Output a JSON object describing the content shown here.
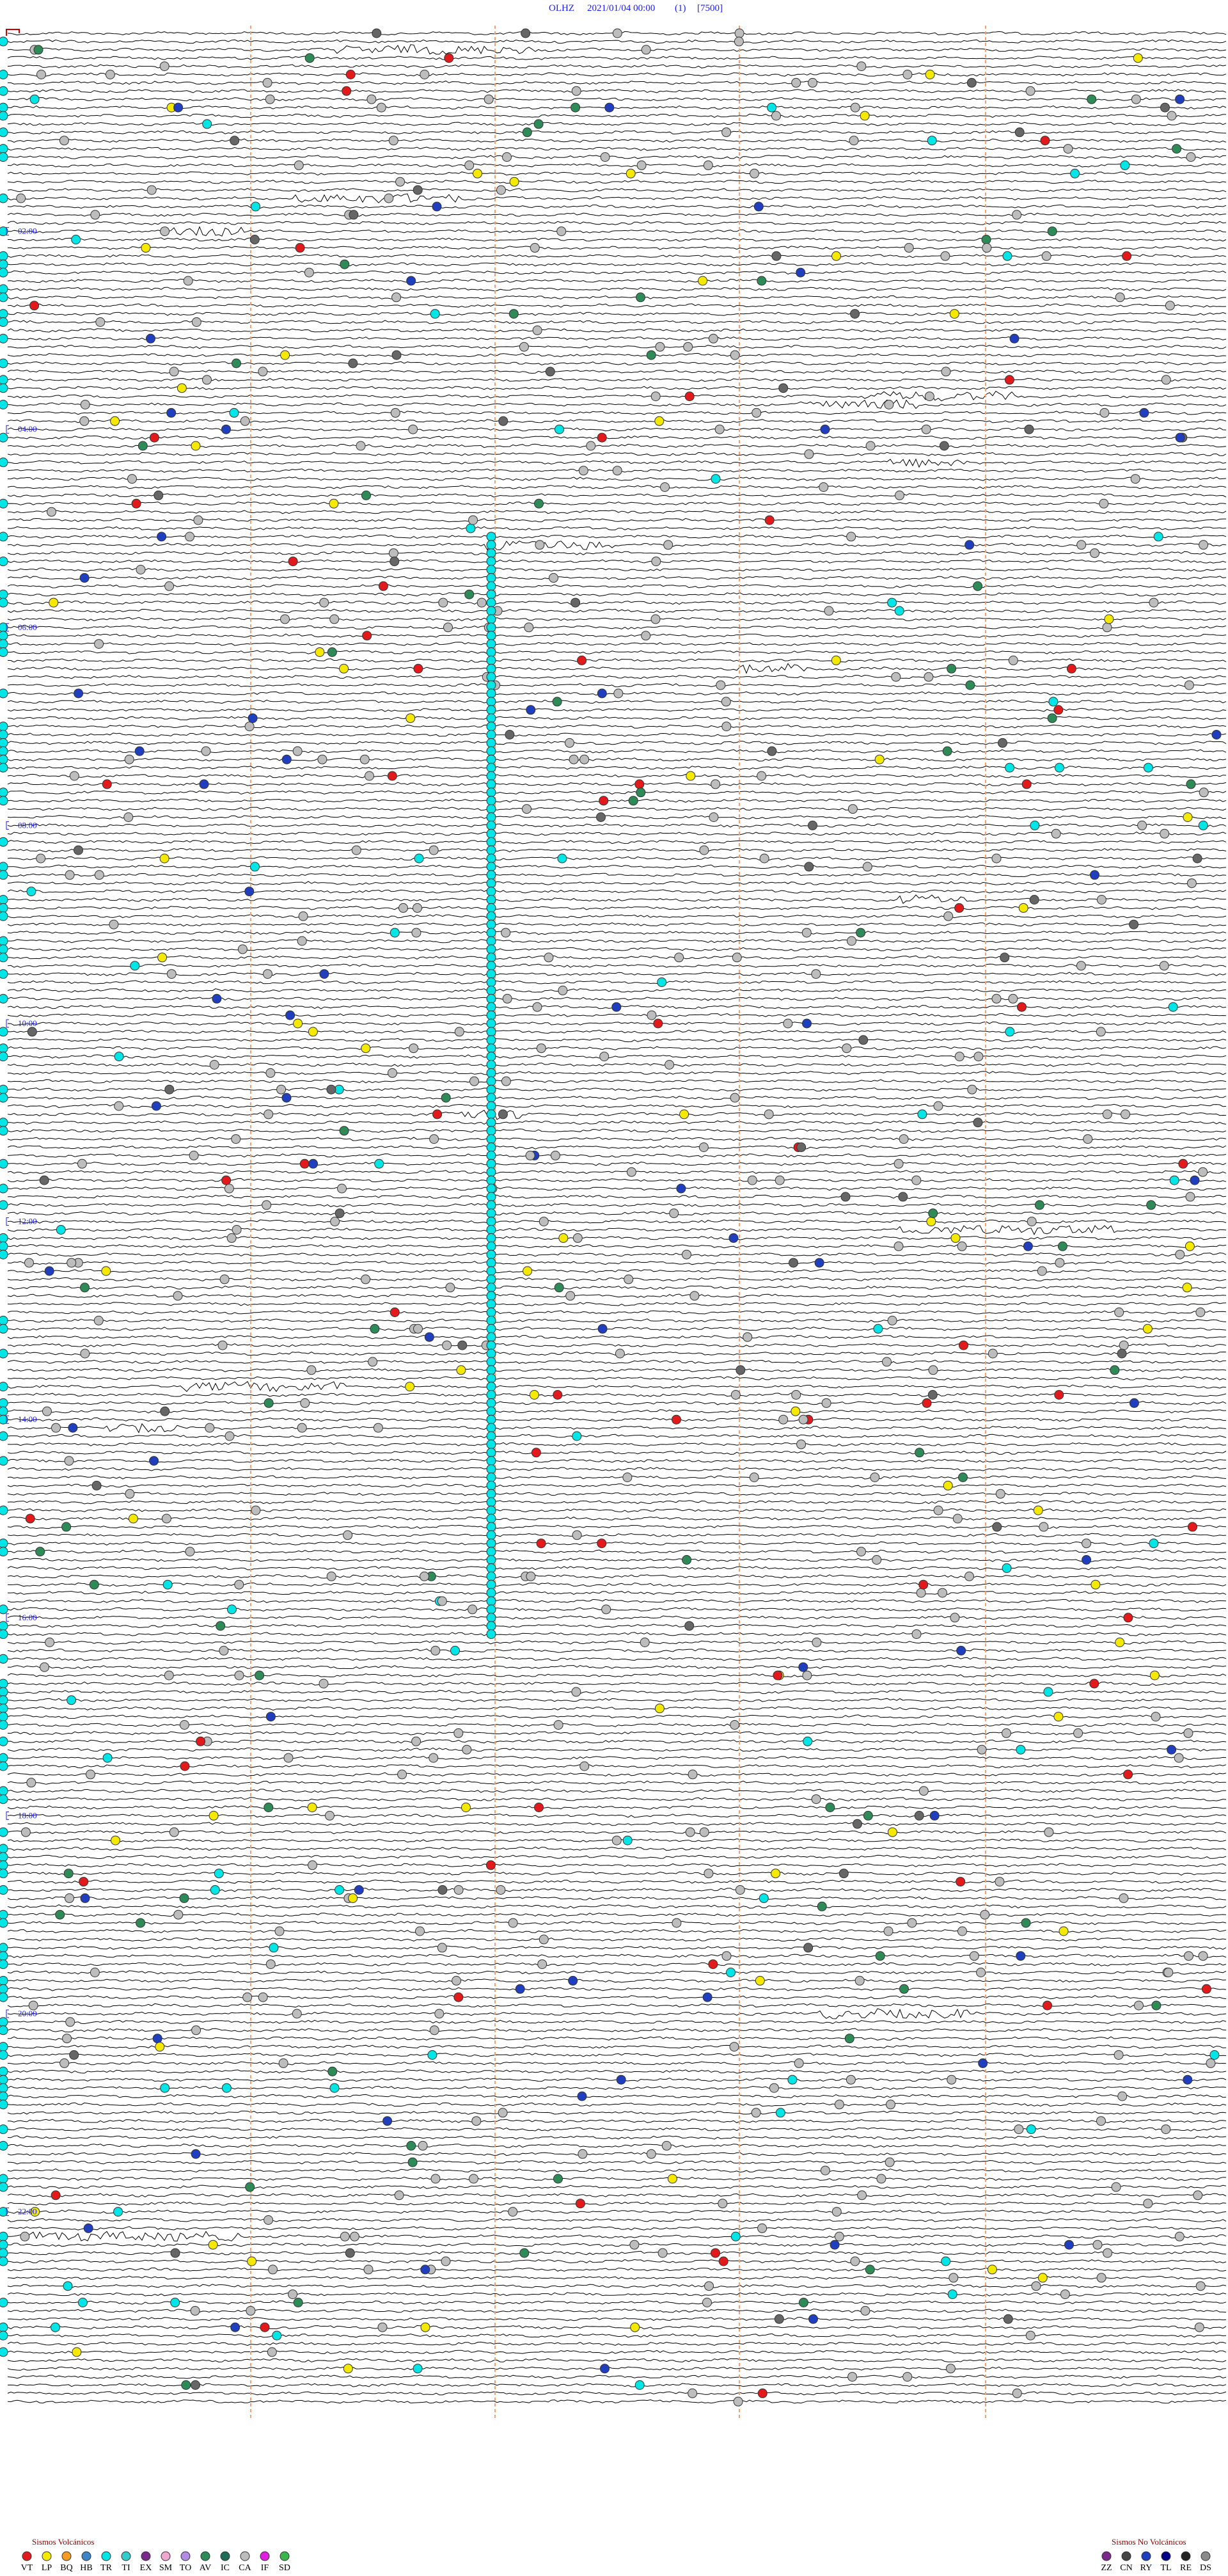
{
  "header": {
    "station": "OLHZ",
    "date": "2021/01/04 00:00",
    "count": "(1)",
    "scale": "[7500]"
  },
  "hour_labels": [
    "02:00",
    "04:00",
    "06:00",
    "08:00",
    "10:00",
    "12:00",
    "14:00",
    "16:00",
    "18:00",
    "20:00",
    "22:00"
  ],
  "legend_volcanic": {
    "title": "Sismos Volcánicos",
    "items": [
      {
        "code": "VT",
        "color": "#e31a1c"
      },
      {
        "code": "LP",
        "color": "#f5e900"
      },
      {
        "code": "BQ",
        "color": "#f59a23"
      },
      {
        "code": "HB",
        "color": "#3d85c6"
      },
      {
        "code": "TR",
        "color": "#00e5e5"
      },
      {
        "code": "TI",
        "color": "#33cccc"
      },
      {
        "code": "EX",
        "color": "#7b2a8c"
      },
      {
        "code": "SM",
        "color": "#f0a6d0"
      },
      {
        "code": "TO",
        "color": "#b48ae6"
      },
      {
        "code": "AV",
        "color": "#2e8b57"
      },
      {
        "code": "IC",
        "color": "#1e6b5a"
      },
      {
        "code": "CA",
        "color": "#bdbdbd"
      },
      {
        "code": "IF",
        "color": "#e020e0"
      },
      {
        "code": "SD",
        "color": "#39b54a"
      }
    ]
  },
  "legend_nonvolcanic": {
    "title": "Sismos No Volcánicos",
    "items": [
      {
        "code": "ZZ",
        "color": "#7b2a8c"
      },
      {
        "code": "CN",
        "color": "#444444"
      },
      {
        "code": "RY",
        "color": "#1f3fbf"
      },
      {
        "code": "TL",
        "color": "#00008b"
      },
      {
        "code": "RE",
        "color": "#222222"
      },
      {
        "code": "DS",
        "color": "#8a8a8a"
      }
    ]
  }
}
